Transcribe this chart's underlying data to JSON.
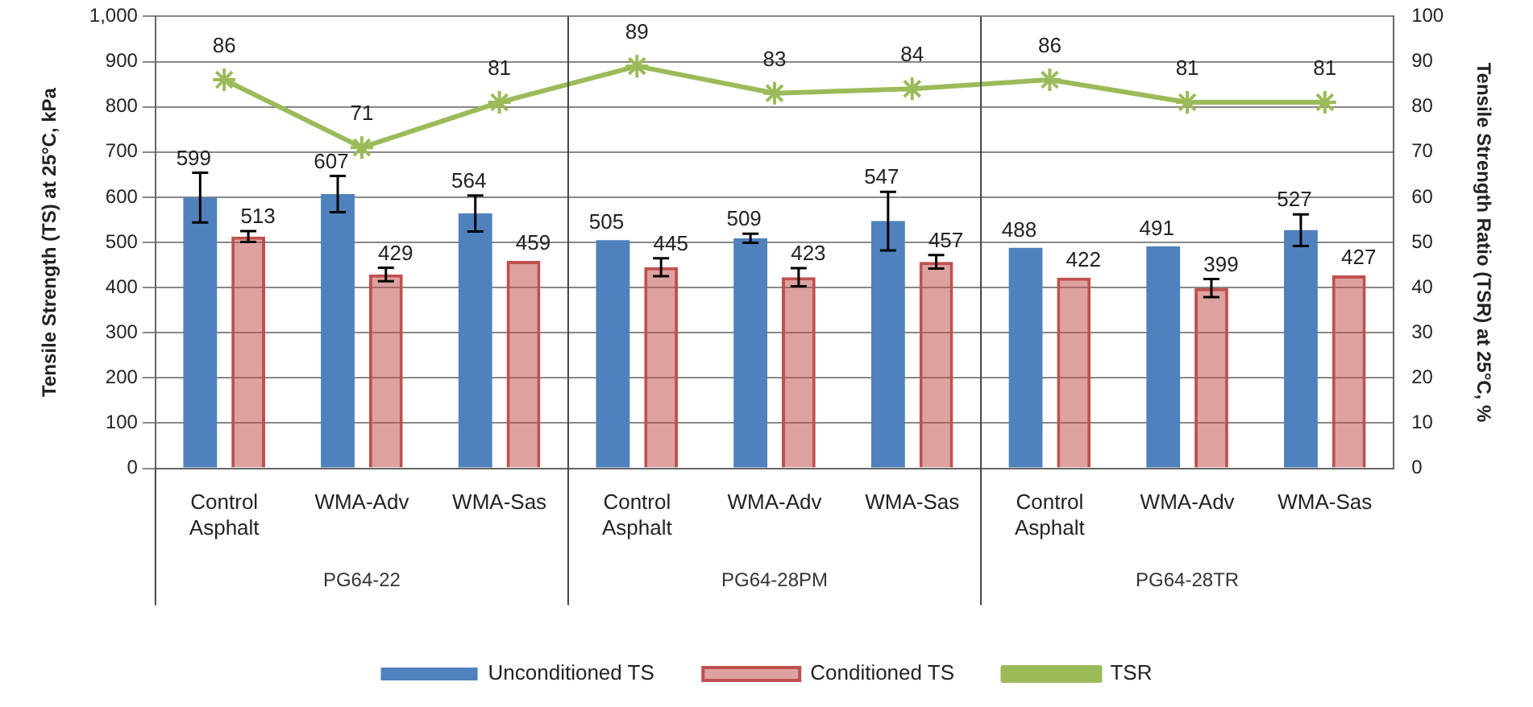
{
  "chart_data": {
    "type": "bar",
    "categories": [
      "Control Asphalt",
      "WMA-Adv",
      "WMA-Sas",
      "Control Asphalt",
      "WMA-Adv",
      "WMA-Sas",
      "Control Asphalt",
      "WMA-Adv",
      "WMA-Sas"
    ],
    "series": [
      {
        "name": "Unconditioned TS",
        "color": "#4f81bd",
        "values": [
          599,
          607,
          564,
          505,
          509,
          547,
          488,
          491,
          527
        ],
        "errors": [
          55,
          40,
          40,
          null,
          10,
          65,
          null,
          null,
          35
        ]
      },
      {
        "name": "Conditioned TS",
        "color": "#c0504d",
        "values": [
          513,
          429,
          459,
          445,
          423,
          457,
          422,
          399,
          427
        ],
        "errors": [
          12,
          15,
          null,
          20,
          20,
          15,
          null,
          20,
          null
        ]
      },
      {
        "name": "TSR",
        "type": "line",
        "axis": "y2",
        "color": "#9bbb59",
        "marker": "cross",
        "values": [
          86,
          71,
          81,
          89,
          83,
          84,
          86,
          81,
          81
        ]
      }
    ],
    "ylabel": "Tensile Strength (TS) at 25°C, kPa",
    "y2label": "Tensile Strength Ratio (TSR) at 25°C, %",
    "ylim": [
      0,
      1000
    ],
    "yticks": [
      0,
      {
        "value": 100,
        "label": "100"
      },
      {
        "value": 200,
        "label": "200"
      },
      {
        "value": 300,
        "label": "300"
      },
      {
        "value": 400,
        "label": "400"
      },
      {
        "value": 500,
        "label": "500"
      },
      {
        "value": 600,
        "label": "600"
      },
      {
        "value": 700,
        "label": "700"
      },
      {
        "value": 800,
        "label": "800"
      },
      {
        "value": 900,
        "label": "900"
      },
      {
        "value": 1000,
        "label": "1,000"
      }
    ],
    "y2lim": [
      0,
      100
    ],
    "y2ticks": [
      0,
      10,
      20,
      30,
      40,
      50,
      60,
      70,
      80,
      90,
      100
    ],
    "annotations": [
      "PG64-22",
      "PG64-28PM",
      "PG64-28TR"
    ],
    "data_labels": true,
    "grid": "y",
    "legend": "bottom"
  }
}
